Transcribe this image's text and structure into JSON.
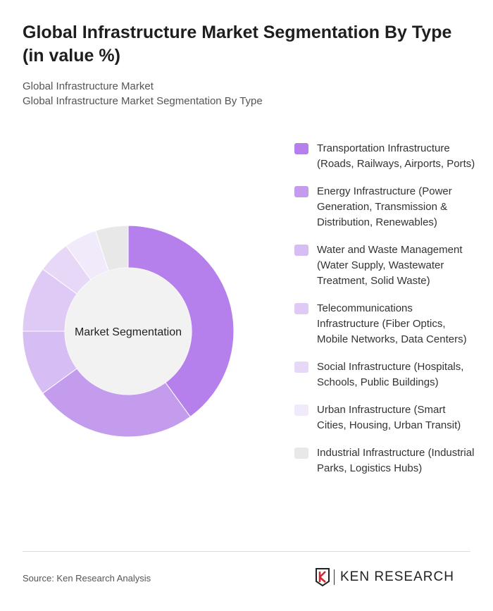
{
  "title": "Global Infrastructure Market Segmentation By Type (in value %)",
  "subtitle1": "Global Infrastructure Market",
  "subtitle2": "Global Infrastructure Market Segmentation By Type",
  "source": "Source: Ken Research Analysis",
  "logo": "KEN RESEARCH",
  "chart_data": {
    "type": "pie",
    "variant": "donut",
    "center_label": "Market Segmentation",
    "legend_position": "right",
    "categories": [
      "Transportation Infrastructure (Roads, Railways, Airports, Ports)",
      "Energy Infrastructure (Power Generation, Transmission & Distribution, Renewables)",
      "Water and Waste Management (Water Supply, Wastewater Treatment, Solid Waste)",
      "Telecommunications Infrastructure (Fiber Optics, Mobile Networks, Data Centers)",
      "Social Infrastructure (Hospitals, Schools, Public Buildings)",
      "Urban Infrastructure (Smart Cities, Housing, Urban Transit)",
      "Industrial Infrastructure (Industrial Parks, Logistics Hubs)"
    ],
    "values": [
      40,
      25,
      10,
      10,
      5,
      5,
      5
    ],
    "colors": [
      "#b57fec",
      "#c39cee",
      "#d6bdf4",
      "#decaf5",
      "#e7d8f7",
      "#f1eafa",
      "#e8e8e8"
    ]
  }
}
